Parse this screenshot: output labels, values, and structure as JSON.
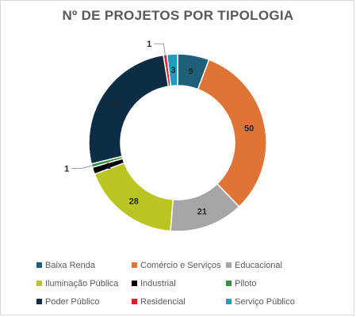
{
  "chart_data": {
    "type": "pie",
    "title": "Nº DE PROJETOS POR TIPOLOGIA",
    "categories": [
      "Baixa Renda",
      "Comércio e Serviços",
      "Educacional",
      "Iluminação Pública",
      "Industrial",
      "Piloto",
      "Poder Público",
      "Residencial",
      "Serviço Público"
    ],
    "values": [
      9,
      50,
      21,
      28,
      2,
      1,
      41,
      1,
      3
    ],
    "colors": [
      "#1f5f7a",
      "#e07434",
      "#a6a6a6",
      "#b8c523",
      "#000000",
      "#3a8f3a",
      "#0d2d44",
      "#e01e2b",
      "#1e9bc2"
    ],
    "legend_position": "bottom",
    "data_labels": true
  }
}
